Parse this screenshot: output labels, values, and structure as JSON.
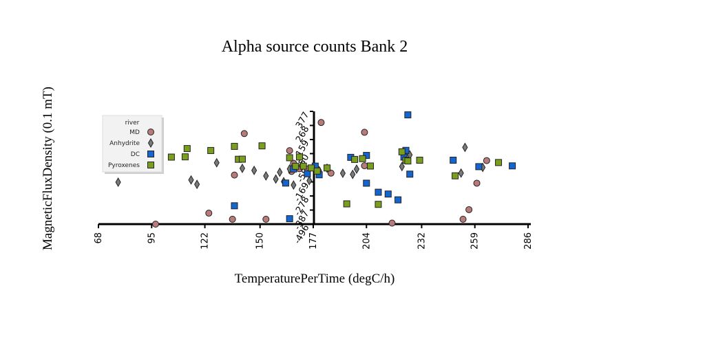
{
  "chart_data": {
    "type": "scatter",
    "title": "Alpha source counts Bank 2",
    "xlabel": "TemperaturePerTime (degC/h)",
    "ylabel": "MagneticFluxDensity (0.1 mT)",
    "xlim": [
      68,
      286
    ],
    "ylim": [
      -496,
      377
    ],
    "x_ticks": [
      "68",
      "95",
      "122",
      "150",
      "177",
      "204",
      "232",
      "259",
      "286"
    ],
    "y_ticks": [
      "-496",
      "-387",
      "-278",
      "-169",
      "-59",
      "50",
      "159",
      "268",
      "377"
    ],
    "legend": {
      "title": "river",
      "position": "top-left"
    },
    "colors": {
      "MD": "#b97a7a",
      "Anhydrite": "#7a7a7a",
      "DC": "#1565d0",
      "Pyroxenes": "#7a9e1e"
    },
    "series": [
      {
        "name": "MD",
        "marker": "circle",
        "x": [
          97,
          124,
          136,
          137,
          142,
          153,
          165,
          166,
          167,
          170,
          174,
          181,
          186,
          203,
          203,
          217,
          253,
          256,
          260,
          265
        ],
        "y": [
          -496,
          -411,
          -458,
          -116,
          205,
          -458,
          73,
          -88,
          -25,
          -67,
          -69,
          291,
          -101,
          -44,
          215,
          -488,
          -458,
          -384,
          -179,
          -4
        ]
      },
      {
        "name": "Anhydrite",
        "marker": "diamond",
        "x": [
          78,
          115,
          118,
          128,
          141,
          147,
          153,
          158,
          160,
          162,
          165,
          167,
          171,
          175,
          180,
          184,
          192,
          197,
          199,
          222,
          226,
          252,
          254,
          263
        ],
        "y": [
          -171,
          -154,
          -188,
          -21,
          -64,
          -80,
          -123,
          -147,
          -94,
          -167,
          -69,
          -193,
          -43,
          -159,
          -82,
          -63,
          -102,
          -111,
          -70,
          -50,
          40,
          -101,
          98,
          -57
        ]
      },
      {
        "name": "DC",
        "marker": "square",
        "x": [
          137,
          163,
          165,
          167,
          174,
          178,
          180,
          196,
          204,
          204,
          210,
          215,
          220,
          223,
          224,
          225,
          226,
          248,
          261,
          278
        ],
        "y": [
          -354,
          -178,
          -454,
          -69,
          -106,
          -47,
          -114,
          21,
          36,
          -179,
          -249,
          -263,
          -308,
          23,
          75,
          350,
          -109,
          -1,
          -51,
          -45
        ]
      },
      {
        "name": "Pyroxenes",
        "marker": "square",
        "x": [
          105,
          112,
          113,
          125,
          137,
          139,
          141,
          151,
          165,
          168,
          170,
          172,
          176,
          179,
          184,
          194,
          198,
          202,
          206,
          210,
          222,
          224,
          225,
          231,
          249,
          271
        ],
        "y": [
          23,
          25,
          89,
          74,
          106,
          6,
          7,
          110,
          18,
          -48,
          24,
          -47,
          -61,
          -85,
          -61,
          -339,
          5,
          11,
          -46,
          -343,
          64,
          -1,
          -7,
          -1,
          -122,
          -19
        ]
      }
    ]
  }
}
